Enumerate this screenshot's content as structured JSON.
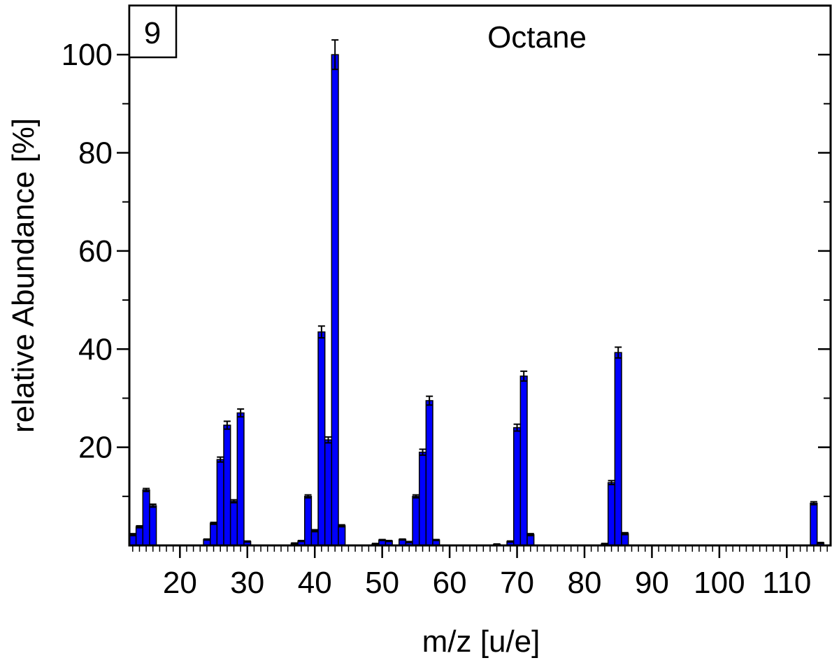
{
  "chart_data": {
    "type": "bar",
    "title": "Octane",
    "panel_label": "9",
    "xlabel": "m/z [u/e]",
    "ylabel": "relative Abundance [%]",
    "xlim": [
      12.5,
      116.5
    ],
    "ylim": [
      0,
      110
    ],
    "x_ticks": [
      20,
      30,
      40,
      50,
      60,
      70,
      80,
      90,
      100,
      110
    ],
    "y_ticks": [
      20,
      40,
      60,
      80,
      100
    ],
    "bar_color": "#0000ff",
    "grid": false,
    "error_bars": true,
    "x": [
      13,
      14,
      15,
      16,
      24,
      25,
      26,
      27,
      28,
      29,
      30,
      37,
      38,
      39,
      40,
      41,
      42,
      43,
      44,
      49,
      50,
      51,
      53,
      54,
      55,
      56,
      57,
      58,
      67,
      69,
      70,
      71,
      72,
      83,
      84,
      85,
      86,
      114,
      115
    ],
    "values": [
      2.2,
      3.8,
      11.3,
      8.1,
      1.2,
      4.5,
      17.5,
      24.5,
      9.0,
      27.0,
      0.8,
      0.4,
      0.9,
      10.0,
      3.0,
      43.5,
      21.5,
      100,
      4.0,
      0.3,
      1.1,
      0.9,
      1.2,
      0.7,
      10.0,
      19.0,
      29.5,
      1.1,
      0.2,
      0.8,
      24.0,
      34.5,
      2.2,
      0.3,
      12.8,
      39.3,
      2.4,
      8.6,
      0.5
    ],
    "errors": [
      0.2,
      0.2,
      0.3,
      0.3,
      0.1,
      0.2,
      0.5,
      0.8,
      0.3,
      0.8,
      0.1,
      0.1,
      0.1,
      0.3,
      0.2,
      1.2,
      0.6,
      3.0,
      0.2,
      0.1,
      0.1,
      0.1,
      0.1,
      0.1,
      0.3,
      0.6,
      0.9,
      0.1,
      0.1,
      0.1,
      0.7,
      1.0,
      0.2,
      0.1,
      0.4,
      1.1,
      0.2,
      0.3,
      0.1
    ]
  }
}
